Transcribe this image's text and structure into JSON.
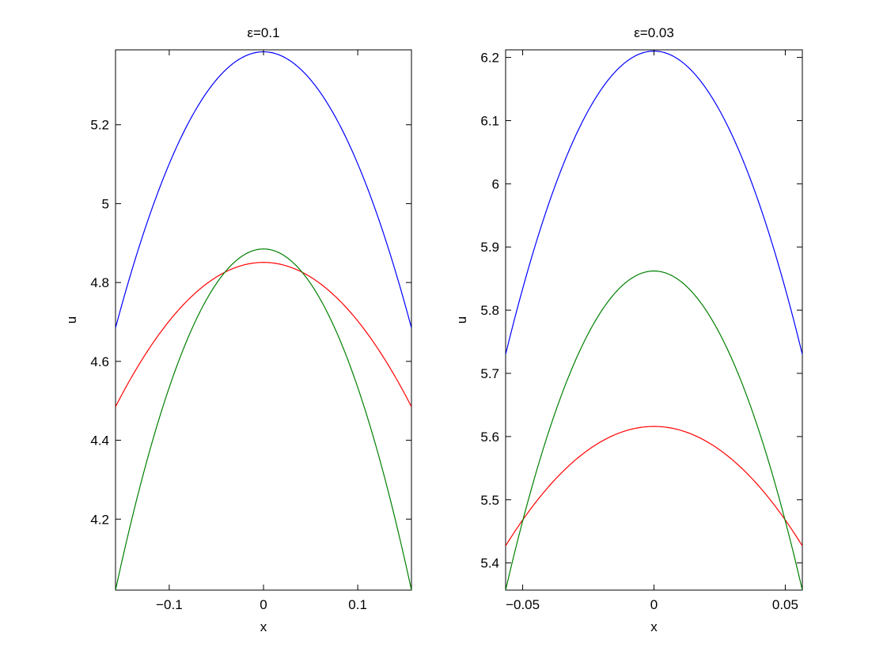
{
  "chart_data": [
    {
      "type": "line",
      "title": "ε=0.1",
      "xlabel": "x",
      "ylabel": "u",
      "xlim": [
        -0.157,
        0.157
      ],
      "ylim": [
        4.02,
        5.39
      ],
      "xticks": [
        {
          "value": -0.1,
          "label": "−0.1"
        },
        {
          "value": 0,
          "label": "0"
        },
        {
          "value": 0.1,
          "label": "0.1"
        }
      ],
      "yticks": [
        {
          "value": 4.2,
          "label": "4.2"
        },
        {
          "value": 4.4,
          "label": "4.4"
        },
        {
          "value": 4.6,
          "label": "4.6"
        },
        {
          "value": 4.8,
          "label": "4.8"
        },
        {
          "value": 5.0,
          "label": "5"
        },
        {
          "value": 5.2,
          "label": "5.2"
        }
      ],
      "series": [
        {
          "color": "#0000ff",
          "x": [
            -0.157,
            -0.1,
            -0.05,
            0,
            0.05,
            0.1,
            0.157
          ],
          "y": [
            4.685,
            5.1,
            5.31,
            5.385,
            5.31,
            5.1,
            4.685
          ]
        },
        {
          "color": "#ff0000",
          "x": [
            -0.157,
            -0.1,
            -0.05,
            0,
            0.05,
            0.1,
            0.157
          ],
          "y": [
            4.485,
            4.7,
            4.81,
            4.851,
            4.81,
            4.7,
            4.485
          ]
        },
        {
          "color": "#008000",
          "x": [
            -0.157,
            -0.1,
            -0.05,
            0,
            0.05,
            0.1,
            0.157
          ],
          "y": [
            4.02,
            4.5,
            4.76,
            4.885,
            4.76,
            4.5,
            4.02
          ]
        }
      ]
    },
    {
      "type": "line",
      "title": "ε=0.03",
      "xlabel": "x",
      "ylabel": "u",
      "xlim": [
        -0.0565,
        0.0565
      ],
      "ylim": [
        5.357,
        6.212
      ],
      "xticks": [
        {
          "value": -0.05,
          "label": "−0.05"
        },
        {
          "value": 0,
          "label": "0"
        },
        {
          "value": 0.05,
          "label": "0.05"
        }
      ],
      "yticks": [
        {
          "value": 5.4,
          "label": "5.4"
        },
        {
          "value": 5.5,
          "label": "5.5"
        },
        {
          "value": 5.6,
          "label": "5.6"
        },
        {
          "value": 5.7,
          "label": "5.7"
        },
        {
          "value": 5.8,
          "label": "5.8"
        },
        {
          "value": 5.9,
          "label": "5.9"
        },
        {
          "value": 6.0,
          "label": "6"
        },
        {
          "value": 6.1,
          "label": "6.1"
        },
        {
          "value": 6.2,
          "label": "6.2"
        }
      ],
      "series": [
        {
          "color": "#0000ff",
          "x": [
            -0.0565,
            -0.04,
            -0.02,
            0,
            0.02,
            0.04,
            0.0565
          ],
          "y": [
            5.73,
            5.95,
            6.15,
            6.21,
            6.15,
            5.95,
            5.73
          ]
        },
        {
          "color": "#ff0000",
          "x": [
            -0.0565,
            -0.04,
            -0.02,
            0,
            0.02,
            0.04,
            0.0565
          ],
          "y": [
            5.427,
            5.53,
            5.595,
            5.616,
            5.595,
            5.53,
            5.427
          ]
        },
        {
          "color": "#008000",
          "x": [
            -0.0565,
            -0.04,
            -0.02,
            0,
            0.02,
            0.04,
            0.0565
          ],
          "y": [
            5.357,
            5.61,
            5.8,
            5.862,
            5.8,
            5.61,
            5.357
          ]
        }
      ]
    }
  ]
}
